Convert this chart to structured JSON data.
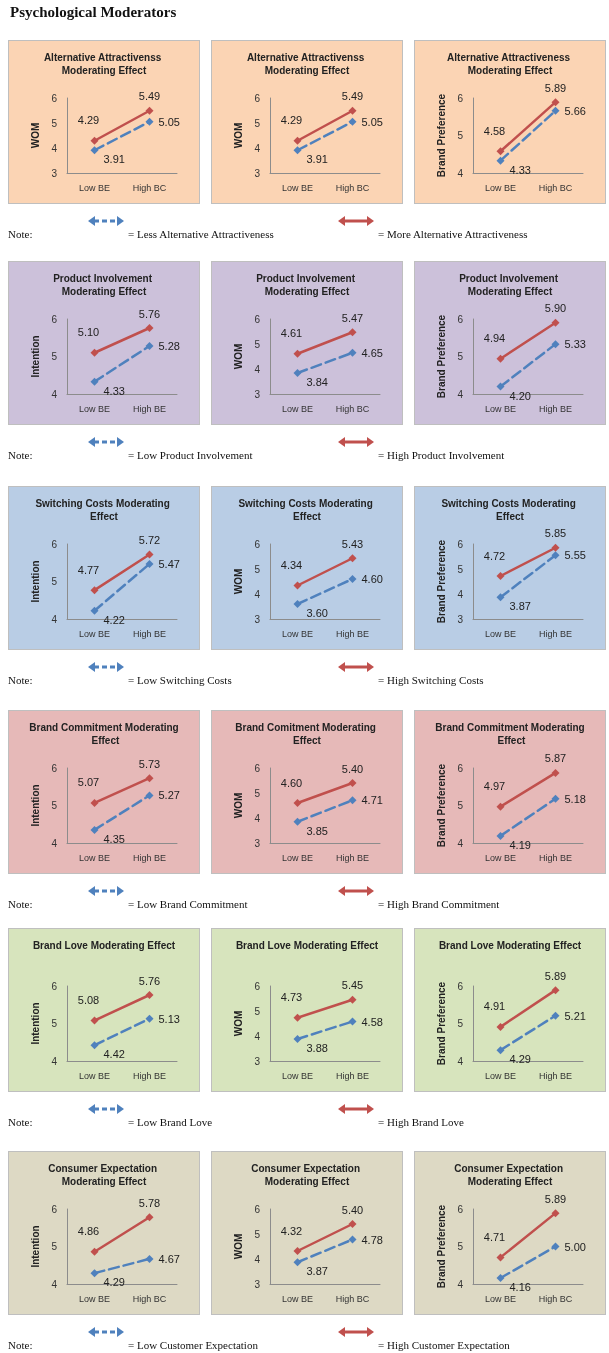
{
  "chart_data": [
    {
      "type": "other",
      "title": "Psychological Moderators"
    },
    {
      "type": "line",
      "title": "Alternative Attractivenss Moderating Effect",
      "ylabel": "WOM",
      "categories": [
        "Low BE",
        "High BC"
      ],
      "ylim": [
        3,
        6
      ],
      "yticks": [
        3,
        4,
        5,
        6
      ],
      "marker": "diamond",
      "series": [
        {
          "color": "#4f81bd",
          "line_style": "dashed",
          "values": [
            3.91,
            5.05
          ],
          "value_labels": [
            "3.91",
            "5.05"
          ]
        },
        {
          "color": "#c0504d",
          "line_style": "solid",
          "values": [
            4.29,
            5.49
          ],
          "value_labels": [
            "4.29",
            "5.49"
          ]
        }
      ]
    },
    {
      "type": "line",
      "title": "Alternative Attractivenss Moderating Effect",
      "ylabel": "WOM",
      "categories": [
        "Low BE",
        "High BC"
      ],
      "ylim": [
        3,
        6
      ],
      "yticks": [
        3,
        4,
        5,
        6
      ],
      "marker": "diamond",
      "series": [
        {
          "color": "#4f81bd",
          "line_style": "dashed",
          "values": [
            3.91,
            5.05
          ],
          "value_labels": [
            "3.91",
            "5.05"
          ]
        },
        {
          "color": "#c0504d",
          "line_style": "solid",
          "values": [
            4.29,
            5.49
          ],
          "value_labels": [
            "4.29",
            "5.49"
          ]
        }
      ]
    },
    {
      "type": "line",
      "title": "Alternative Attractiveness Moderating Effect",
      "ylabel": "Brand Preference",
      "categories": [
        "Low BE",
        "High BC"
      ],
      "ylim": [
        4,
        6
      ],
      "yticks": [
        4,
        5,
        6
      ],
      "marker": "diamond",
      "series": [
        {
          "color": "#4f81bd",
          "line_style": "dashed",
          "values": [
            4.33,
            5.66
          ],
          "value_labels": [
            "4.33",
            "5.66"
          ]
        },
        {
          "color": "#c0504d",
          "line_style": "solid",
          "values": [
            4.58,
            5.89
          ],
          "value_labels": [
            "4.58",
            "5.89"
          ]
        }
      ]
    },
    {
      "type": "other",
      "annotations": [
        "Note:",
        "= Less Alternative Attractiveness",
        "= More Alternative Attractiveness"
      ],
      "colors": [
        "#4f81bd",
        "#c0504d"
      ]
    },
    {
      "type": "line",
      "title": "Product Involvement Moderating Effect",
      "ylabel": "Intention",
      "categories": [
        "Low BE",
        "High BE"
      ],
      "ylim": [
        4,
        6
      ],
      "yticks": [
        4,
        5,
        6
      ],
      "marker": "diamond",
      "series": [
        {
          "color": "#4f81bd",
          "line_style": "dashed",
          "values": [
            4.33,
            5.28
          ],
          "value_labels": [
            "4.33",
            "5.28"
          ]
        },
        {
          "color": "#c0504d",
          "line_style": "solid",
          "values": [
            5.1,
            5.76
          ],
          "value_labels": [
            "5.10",
            "5.76"
          ]
        }
      ]
    },
    {
      "type": "line",
      "title": "Product Involvement Moderating Effect",
      "ylabel": "WOM",
      "categories": [
        "Low BE",
        "High BC"
      ],
      "ylim": [
        3,
        6
      ],
      "yticks": [
        3,
        4,
        5,
        6
      ],
      "marker": "diamond",
      "series": [
        {
          "color": "#4f81bd",
          "line_style": "dashed",
          "values": [
            3.84,
            4.65
          ],
          "value_labels": [
            "3.84",
            "4.65"
          ]
        },
        {
          "color": "#c0504d",
          "line_style": "solid",
          "values": [
            4.61,
            5.47
          ],
          "value_labels": [
            "4.61",
            "5.47"
          ]
        }
      ]
    },
    {
      "type": "line",
      "title": "Product Involvement Moderating Effect",
      "ylabel": "Brand Preference",
      "categories": [
        "Low BE",
        "High BE"
      ],
      "ylim": [
        4,
        6
      ],
      "yticks": [
        4,
        5,
        6
      ],
      "marker": "diamond",
      "series": [
        {
          "color": "#4f81bd",
          "line_style": "dashed",
          "values": [
            4.2,
            5.33
          ],
          "value_labels": [
            "4.20",
            "5.33"
          ]
        },
        {
          "color": "#c0504d",
          "line_style": "solid",
          "values": [
            4.94,
            5.9
          ],
          "value_labels": [
            "4.94",
            "5.90"
          ]
        }
      ]
    },
    {
      "type": "other",
      "annotations": [
        "Note:",
        "= Low Product Involvement",
        "= High Product Involvement"
      ],
      "colors": [
        "#4f81bd",
        "#c0504d"
      ]
    },
    {
      "type": "line",
      "title": "Switching Costs Moderating Effect",
      "ylabel": "Intention",
      "categories": [
        "Low BE",
        "High BE"
      ],
      "ylim": [
        4,
        6
      ],
      "yticks": [
        4,
        5,
        6
      ],
      "marker": "diamond",
      "series": [
        {
          "color": "#4f81bd",
          "line_style": "dashed",
          "values": [
            4.22,
            5.47
          ],
          "value_labels": [
            "4.22",
            "5.47"
          ]
        },
        {
          "color": "#c0504d",
          "line_style": "solid",
          "values": [
            4.77,
            5.72
          ],
          "value_labels": [
            "4.77",
            "5.72"
          ]
        }
      ]
    },
    {
      "type": "line",
      "title": "Switching Costs Moderating Effect",
      "ylabel": "WOM",
      "categories": [
        "Low BE",
        "High BE"
      ],
      "ylim": [
        3,
        6
      ],
      "yticks": [
        3,
        4,
        5,
        6
      ],
      "marker": "diamond",
      "series": [
        {
          "color": "#4f81bd",
          "line_style": "dashed",
          "values": [
            3.6,
            4.6
          ],
          "value_labels": [
            "3.60",
            "4.60"
          ]
        },
        {
          "color": "#c0504d",
          "line_style": "solid",
          "values": [
            4.34,
            5.43
          ],
          "value_labels": [
            "4.34",
            "5.43"
          ]
        }
      ]
    },
    {
      "type": "line",
      "title": "Switching Costs Moderating Effect",
      "ylabel": "Brand Preference",
      "categories": [
        "Low BE",
        "High BE"
      ],
      "ylim": [
        3,
        6
      ],
      "yticks": [
        3,
        4,
        5,
        6
      ],
      "marker": "diamond",
      "series": [
        {
          "color": "#4f81bd",
          "line_style": "dashed",
          "values": [
            3.87,
            5.55
          ],
          "value_labels": [
            "3.87",
            "5.55"
          ]
        },
        {
          "color": "#c0504d",
          "line_style": "solid",
          "values": [
            4.72,
            5.85
          ],
          "value_labels": [
            "4.72",
            "5.85"
          ]
        }
      ]
    },
    {
      "type": "other",
      "annotations": [
        "Note:",
        "= Low Switching Costs",
        "= High Switching Costs"
      ],
      "colors": [
        "#4f81bd",
        "#c0504d"
      ]
    },
    {
      "type": "line",
      "title": "Brand Commitment Moderating Effect",
      "ylabel": "Intention",
      "categories": [
        "Low BE",
        "High BE"
      ],
      "ylim": [
        4,
        6
      ],
      "yticks": [
        4,
        5,
        6
      ],
      "marker": "diamond",
      "series": [
        {
          "color": "#4f81bd",
          "line_style": "dashed",
          "values": [
            4.35,
            5.27
          ],
          "value_labels": [
            "4.35",
            "5.27"
          ]
        },
        {
          "color": "#c0504d",
          "line_style": "solid",
          "values": [
            5.07,
            5.73
          ],
          "value_labels": [
            "5.07",
            "5.73"
          ]
        }
      ]
    },
    {
      "type": "line",
      "title": "Brand Comitment Moderating Effect",
      "ylabel": "WOM",
      "categories": [
        "Low BE",
        "High BE"
      ],
      "ylim": [
        3,
        6
      ],
      "yticks": [
        3,
        4,
        5,
        6
      ],
      "marker": "diamond",
      "series": [
        {
          "color": "#4f81bd",
          "line_style": "dashed",
          "values": [
            3.85,
            4.71
          ],
          "value_labels": [
            "3.85",
            "4.71"
          ]
        },
        {
          "color": "#c0504d",
          "line_style": "solid",
          "values": [
            4.6,
            5.4
          ],
          "value_labels": [
            "4.60",
            "5.40"
          ]
        }
      ]
    },
    {
      "type": "line",
      "title": "Brand Commitment Moderating Effect",
      "ylabel": "Brand Preference",
      "categories": [
        "Low BE",
        "High BE"
      ],
      "ylim": [
        4,
        6
      ],
      "yticks": [
        4,
        5,
        6
      ],
      "marker": "diamond",
      "series": [
        {
          "color": "#4f81bd",
          "line_style": "dashed",
          "values": [
            4.19,
            5.18
          ],
          "value_labels": [
            "4.19",
            "5.18"
          ]
        },
        {
          "color": "#c0504d",
          "line_style": "solid",
          "values": [
            4.97,
            5.87
          ],
          "value_labels": [
            "4.97",
            "5.87"
          ]
        }
      ]
    },
    {
      "type": "other",
      "annotations": [
        "Note:",
        "= Low Brand Commitment",
        "= High Brand Commitment"
      ],
      "colors": [
        "#4f81bd",
        "#c0504d"
      ]
    },
    {
      "type": "line",
      "title": "Brand Love Moderating Effect",
      "ylabel": "Intention",
      "categories": [
        "Low BE",
        "High BE"
      ],
      "ylim": [
        4,
        6
      ],
      "yticks": [
        4,
        5,
        6
      ],
      "marker": "diamond",
      "series": [
        {
          "color": "#4f81bd",
          "line_style": "dashed",
          "values": [
            4.42,
            5.13
          ],
          "value_labels": [
            "4.42",
            "5.13"
          ]
        },
        {
          "color": "#c0504d",
          "line_style": "solid",
          "values": [
            5.08,
            5.76
          ],
          "value_labels": [
            "5.08",
            "5.76"
          ]
        }
      ]
    },
    {
      "type": "line",
      "title": "Brand Love Moderating Effect",
      "ylabel": "WOM",
      "categories": [
        "Low BE",
        "High BE"
      ],
      "ylim": [
        3,
        6
      ],
      "yticks": [
        3,
        4,
        5,
        6
      ],
      "marker": "diamond",
      "series": [
        {
          "color": "#4f81bd",
          "line_style": "dashed",
          "values": [
            3.88,
            4.58
          ],
          "value_labels": [
            "3.88",
            "4.58"
          ]
        },
        {
          "color": "#c0504d",
          "line_style": "solid",
          "values": [
            4.73,
            5.45
          ],
          "value_labels": [
            "4.73",
            "5.45"
          ]
        }
      ]
    },
    {
      "type": "line",
      "title": "Brand Love Moderating Effect",
      "ylabel": "Brand Preference",
      "categories": [
        "Low BE",
        "High BE"
      ],
      "ylim": [
        4,
        6
      ],
      "yticks": [
        4,
        5,
        6
      ],
      "marker": "diamond",
      "series": [
        {
          "color": "#4f81bd",
          "line_style": "dashed",
          "values": [
            4.29,
            5.21
          ],
          "value_labels": [
            "4.29",
            "5.21"
          ]
        },
        {
          "color": "#c0504d",
          "line_style": "solid",
          "values": [
            4.91,
            5.89
          ],
          "value_labels": [
            "4.91",
            "5.89"
          ]
        }
      ]
    },
    {
      "type": "other",
      "annotations": [
        "Note:",
        "= Low Brand Love",
        "= High Brand Love"
      ],
      "colors": [
        "#4f81bd",
        "#c0504d"
      ]
    },
    {
      "type": "line",
      "title": "Consumer Expectation Moderating Effect",
      "ylabel": "Intention",
      "categories": [
        "Low BE",
        "High BC"
      ],
      "ylim": [
        4,
        6
      ],
      "yticks": [
        4,
        5,
        6
      ],
      "marker": "diamond",
      "series": [
        {
          "color": "#4f81bd",
          "line_style": "dashed",
          "values": [
            4.29,
            4.67
          ],
          "value_labels": [
            "4.29",
            "4.67"
          ]
        },
        {
          "color": "#c0504d",
          "line_style": "solid",
          "values": [
            4.86,
            5.78
          ],
          "value_labels": [
            "4.86",
            "5.78"
          ]
        }
      ]
    },
    {
      "type": "line",
      "title": "Consumer Expectation Moderating Effect",
      "ylabel": "WOM",
      "categories": [
        "Low BE",
        "High BC"
      ],
      "ylim": [
        3,
        6
      ],
      "yticks": [
        3,
        4,
        5,
        6
      ],
      "marker": "diamond",
      "series": [
        {
          "color": "#4f81bd",
          "line_style": "dashed",
          "values": [
            3.87,
            4.78
          ],
          "value_labels": [
            "3.87",
            "4.78"
          ]
        },
        {
          "color": "#c0504d",
          "line_style": "solid",
          "values": [
            4.32,
            5.4
          ],
          "value_labels": [
            "4.32",
            "5.40"
          ]
        }
      ]
    },
    {
      "type": "line",
      "title": "Consumer Expectation Moderating Effect",
      "ylabel": "Brand Preference",
      "categories": [
        "Low BE",
        "High BC"
      ],
      "ylim": [
        4,
        6
      ],
      "yticks": [
        4,
        5,
        6
      ],
      "marker": "diamond",
      "series": [
        {
          "color": "#4f81bd",
          "line_style": "dashed",
          "values": [
            4.16,
            5.0
          ],
          "value_labels": [
            "4.16",
            "5.00"
          ]
        },
        {
          "color": "#c0504d",
          "line_style": "solid",
          "values": [
            4.71,
            5.89
          ],
          "value_labels": [
            "4.71",
            "5.89"
          ]
        }
      ]
    },
    {
      "type": "other",
      "annotations": [
        "Note:",
        "= Low Customer Expectation",
        "= High Customer Expectation"
      ],
      "colors": [
        "#4f81bd",
        "#c0504d"
      ]
    }
  ]
}
